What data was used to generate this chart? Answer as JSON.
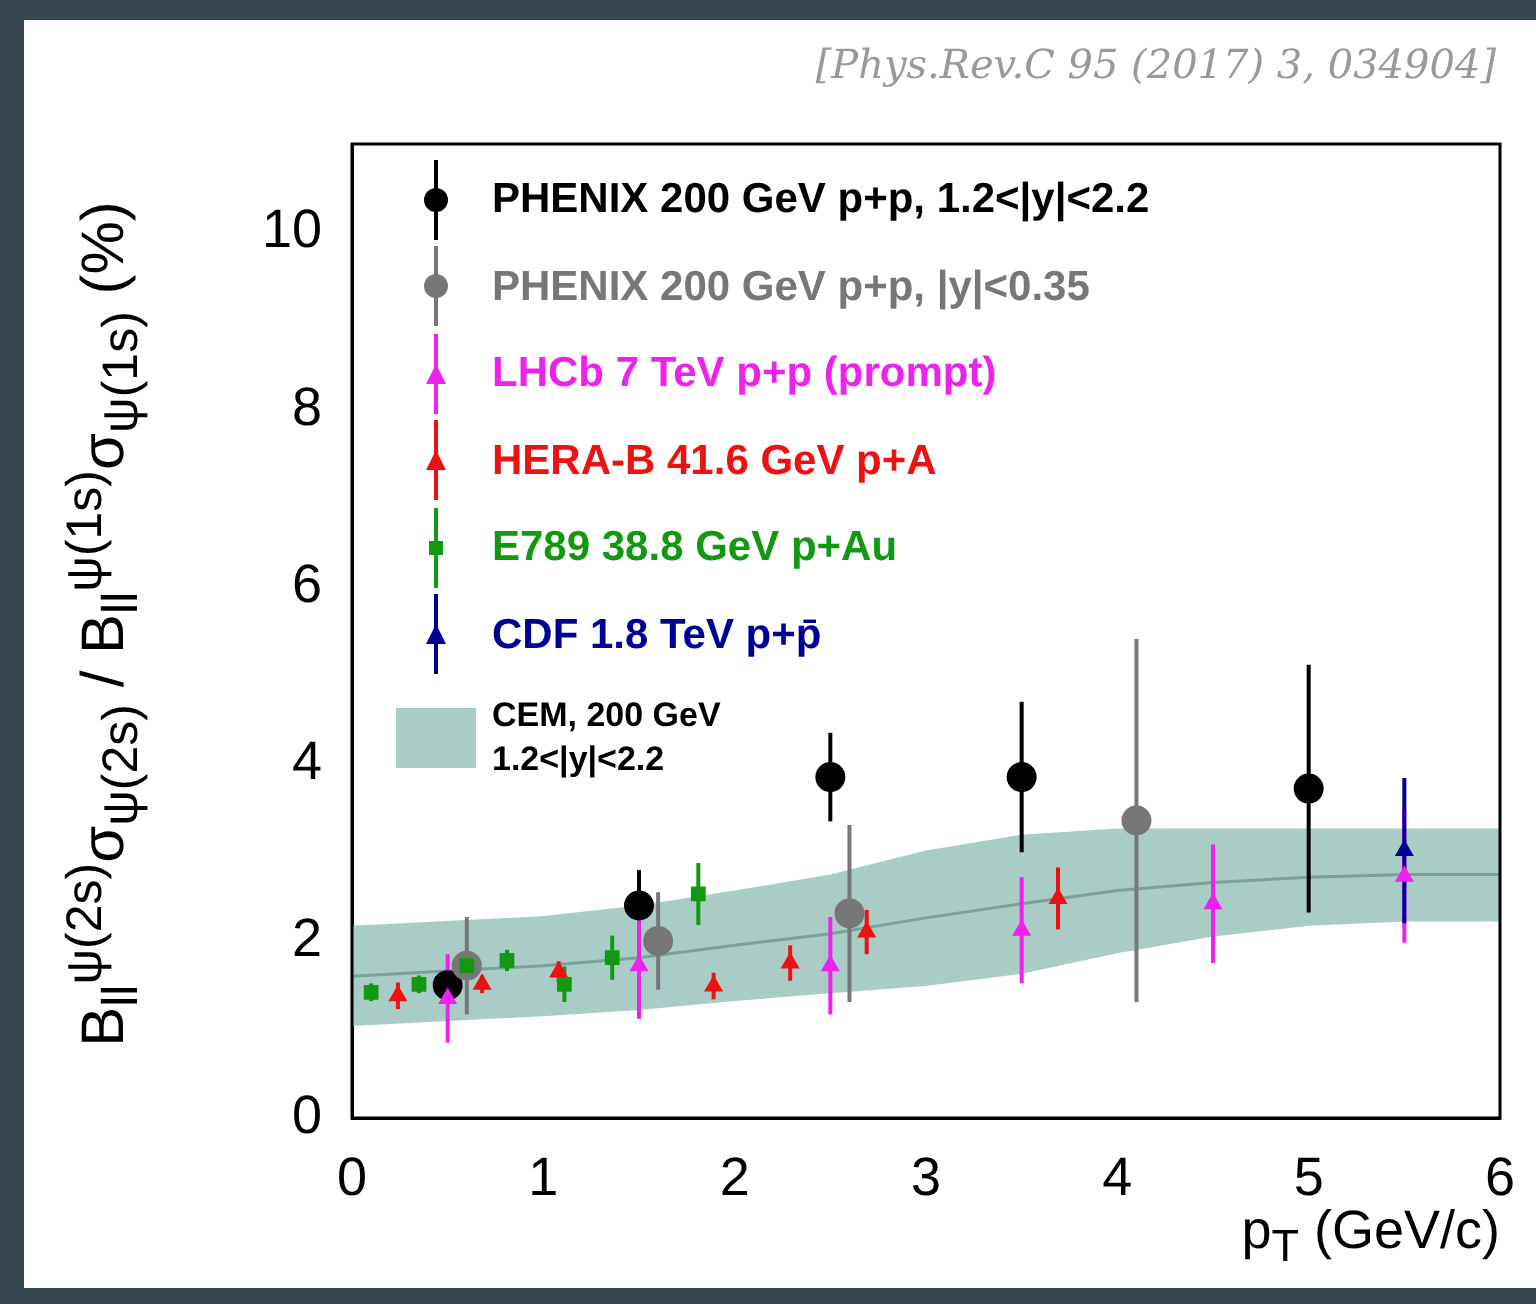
{
  "chart_data": {
    "type": "scatter",
    "ylabel": "B$_{ll}$$^{ψ(2s)}$σ$_{ψ(2s)}$ / B$_{ll}$$^{ψ(1s)}$σ$_{ψ(1s)}$   (%)",
    "xlabel": "p$_{T}$ (GeV/c)",
    "annotations": [
      "[Phys.Rev.C 95 (2017) 3, 034904]"
    ],
    "xlim": [
      0,
      6
    ],
    "xticks": [
      0,
      1,
      2,
      3,
      4,
      5,
      6
    ],
    "ylim": [
      0,
      11
    ],
    "yticks": [
      0,
      2,
      4,
      6,
      8,
      10
    ],
    "grid": false,
    "legend": "top left",
    "series": [
      {
        "name": "CEM, 200 GeV\n1.2<|y|<2.2",
        "type": "line",
        "color": "#a9cdc6",
        "x": [
          0,
          1,
          1.5,
          2,
          2.5,
          3,
          3.5,
          4,
          4.5,
          5,
          5.5,
          6
        ],
        "values": [
          1.6,
          1.72,
          1.81,
          1.95,
          2.08,
          2.26,
          2.42,
          2.57,
          2.66,
          2.72,
          2.75,
          2.75
        ],
        "lower": [
          1.04,
          1.15,
          1.22,
          1.32,
          1.41,
          1.49,
          1.63,
          1.86,
          2.05,
          2.17,
          2.22,
          2.22
        ],
        "upper": [
          2.17,
          2.28,
          2.4,
          2.57,
          2.75,
          3.02,
          3.2,
          3.27,
          3.27,
          3.27,
          3.27,
          3.27
        ]
      },
      {
        "name": "PHENIX 200 GeV p+p, 1.2<|y|<2.2",
        "type": "scatter",
        "marker": "circle",
        "color": "#000000",
        "x": [
          0.5,
          1.5,
          2.5,
          3.5,
          5.0
        ],
        "values": [
          1.5,
          2.4,
          3.85,
          3.85,
          3.72
        ],
        "errors": [
          0.15,
          0.4,
          0.5,
          0.85,
          1.4
        ]
      },
      {
        "name": "PHENIX 200 GeV p+p, |y|<0.35",
        "type": "scatter",
        "marker": "circle",
        "color": "#777777",
        "x": [
          0.6,
          1.6,
          2.6,
          4.1
        ],
        "values": [
          1.72,
          2.0,
          2.31,
          3.36
        ],
        "errors": [
          0.55,
          0.55,
          1.0,
          2.05
        ]
      },
      {
        "name": "LHCb 7 TeV p+p (prompt)",
        "type": "scatter",
        "marker": "triangle",
        "color": "#ee22ee",
        "x": [
          0.5,
          1.5,
          2.5,
          3.5,
          4.5,
          5.5
        ],
        "values": [
          1.35,
          1.72,
          1.72,
          2.12,
          2.42,
          2.73
        ],
        "errors": [
          0.5,
          0.6,
          0.55,
          0.6,
          0.67,
          0.75
        ]
      },
      {
        "name": "HERA-B 41.6 GeV p+A",
        "type": "scatter",
        "marker": "triangle",
        "color": "#ee1111",
        "x": [
          0.24,
          0.68,
          1.08,
          1.89,
          2.29,
          2.69,
          3.69
        ],
        "values": [
          1.38,
          1.51,
          1.65,
          1.49,
          1.75,
          2.1,
          2.48
        ],
        "errors": [
          0.15,
          0.1,
          0.12,
          0.15,
          0.2,
          0.25,
          0.35
        ]
      },
      {
        "name": "E789 38.8 GeV p+Au",
        "type": "scatter",
        "marker": "square",
        "color": "#119911",
        "x": [
          0.1,
          0.35,
          0.6,
          0.81,
          1.11,
          1.36,
          1.81
        ],
        "values": [
          1.42,
          1.51,
          1.72,
          1.78,
          1.51,
          1.81,
          2.53
        ],
        "errors": [
          0.1,
          0.1,
          0.1,
          0.12,
          0.2,
          0.25,
          0.35
        ]
      },
      {
        "name": "CDF 1.8 TeV p+p̄",
        "type": "scatter",
        "marker": "triangle",
        "color": "#000099",
        "x": [
          5.5
        ],
        "values": [
          3.02
        ],
        "errors": [
          0.82
        ]
      }
    ]
  }
}
